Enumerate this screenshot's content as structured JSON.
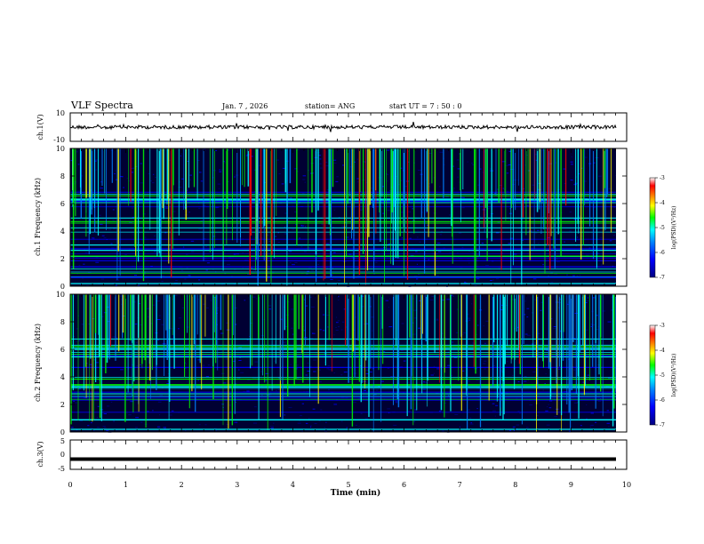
{
  "header": {
    "title": "VLF Spectra",
    "date": "Jan. 7 , 2026",
    "station": "station= ANG",
    "start_ut": "start UT =  7 : 50 : 0"
  },
  "chart_data": [
    {
      "type": "line",
      "name": "ch1-waveform",
      "ylabel": "ch.1(V)",
      "ylim": [
        -10,
        10
      ],
      "yticks": [
        "10",
        "-10"
      ],
      "xlim": [
        0,
        10
      ],
      "baseline": 0,
      "notes": "noisy waveform near 0 V with occasional spikes"
    },
    {
      "type": "heatmap",
      "name": "ch1-spectrogram",
      "ylabel": "ch.1 Frequency (kHz)",
      "ylim": [
        0,
        10
      ],
      "yticks": [
        "0",
        "2",
        "4",
        "6",
        "8",
        "10"
      ],
      "xlim": [
        0,
        10
      ],
      "colorbar": {
        "label": "log(PSD)(V²/Hz)",
        "range": [
          -7,
          -3
        ],
        "ticks": [
          "-3",
          "-4",
          "-5",
          "-6",
          "-7"
        ]
      }
    },
    {
      "type": "heatmap",
      "name": "ch2-spectrogram",
      "ylabel": "ch.2 Frequency (kHz)",
      "ylim": [
        0,
        10
      ],
      "yticks": [
        "0",
        "2",
        "4",
        "6",
        "8",
        "10"
      ],
      "xlim": [
        0,
        10
      ],
      "colorbar": {
        "label": "log(PSD)(V²/Hz)",
        "range": [
          -7,
          -3
        ],
        "ticks": [
          "-3",
          "-4",
          "-5",
          "-6",
          "-7"
        ]
      }
    },
    {
      "type": "line",
      "name": "ch3-waveform",
      "ylabel": "ch.3(V)",
      "ylim": [
        -5,
        5
      ],
      "yticks": [
        "5",
        "0",
        "-5"
      ],
      "xlim": [
        0,
        10
      ],
      "baseline": -1.5,
      "notes": "flat constant line"
    }
  ],
  "xaxis": {
    "label": "Time (min)",
    "ticks": [
      "0",
      "1",
      "2",
      "3",
      "4",
      "5",
      "6",
      "7",
      "8",
      "9",
      "10"
    ]
  },
  "colors": {
    "background": "#000033",
    "line": "#000000",
    "cmap": [
      "#000080",
      "#0000ff",
      "#0080ff",
      "#00ffff",
      "#00ff00",
      "#ffff00",
      "#ff8000",
      "#ff0000",
      "#ffffff"
    ]
  }
}
